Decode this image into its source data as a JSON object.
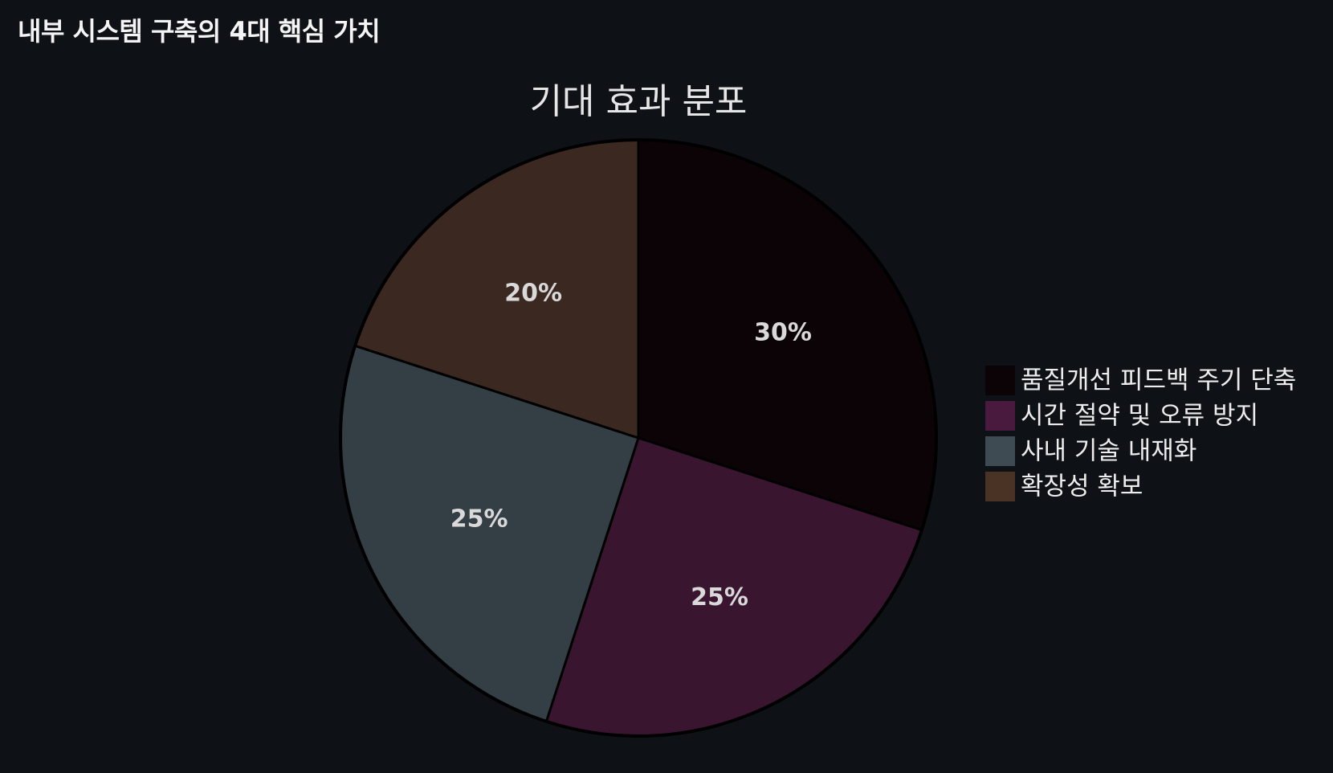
{
  "header": {
    "title": "내부 시스템 구축의 4대 핵심 가치"
  },
  "chart_data": {
    "type": "pie",
    "title": "기대 효과 분포",
    "categories": [
      "품질개선 피드백 주기 단축",
      "시간 절약 및 오류 방지",
      "사내 기술 내재화",
      "확장성 확보"
    ],
    "values": [
      30,
      25,
      25,
      20
    ],
    "value_labels": [
      "30%",
      "25%",
      "25%",
      "20%"
    ],
    "colors": [
      "#0b0306",
      "#3a1530",
      "#343e45",
      "#3b2820"
    ],
    "legend_colors": [
      "#0b0306",
      "#4a1a3e",
      "#3f4b52",
      "#4a3325"
    ],
    "start_angle": "12 o'clock",
    "direction": "clockwise",
    "legend_position": "right"
  }
}
